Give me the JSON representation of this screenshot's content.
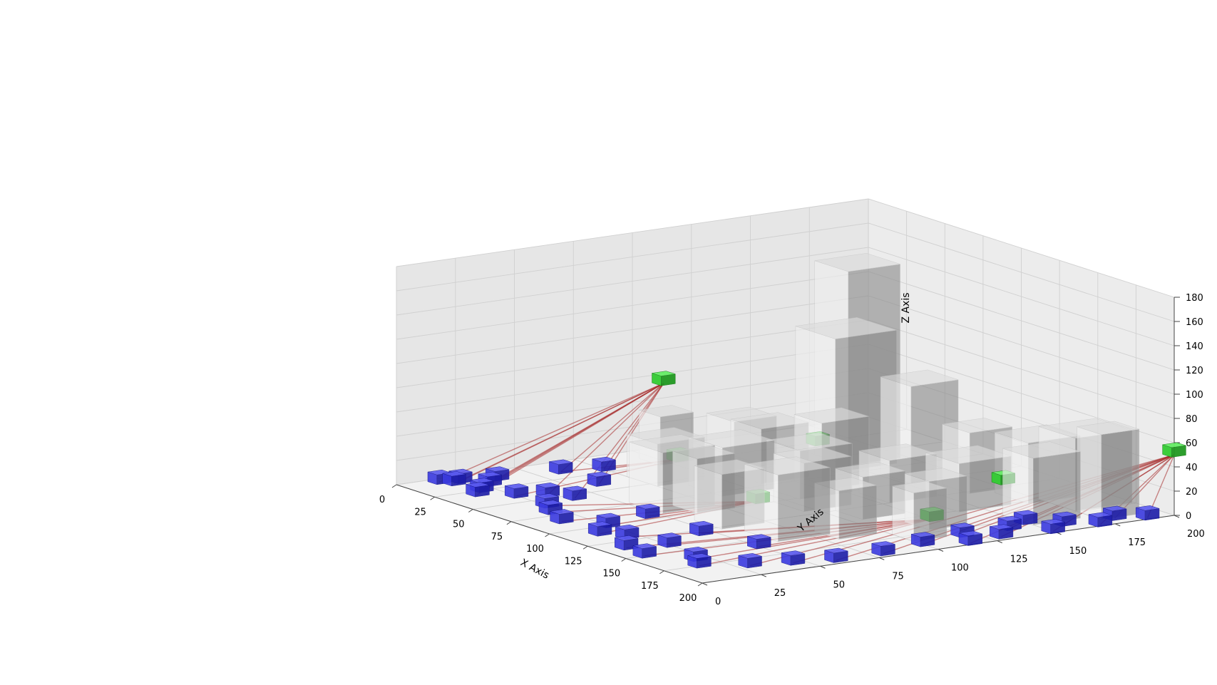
{
  "chart_data": {
    "type": "scatter",
    "projection": "3d",
    "grid": true,
    "xlabel": "X Axis",
    "ylabel": "Y Axis",
    "zlabel": "Z Axis",
    "xlim": [
      0,
      200
    ],
    "ylim": [
      0,
      200
    ],
    "zlim": [
      0,
      180
    ],
    "xticks": [
      0,
      25,
      50,
      75,
      100,
      125,
      150,
      175,
      200
    ],
    "yticks": [
      0,
      25,
      50,
      75,
      100,
      125,
      150,
      175,
      200
    ],
    "zticks": [
      0,
      20,
      40,
      60,
      80,
      100,
      120,
      140,
      160,
      180
    ],
    "colors": {
      "building": "#c8c8c8",
      "ground_node": "#2222cc",
      "relay_node": "#33cc33",
      "link": "#a52a2a",
      "pane": "#f2f2f2",
      "grid": "#d0d0d0"
    },
    "buildings": [
      {
        "x": 12,
        "y": 95,
        "w": 14,
        "d": 14,
        "h": 40
      },
      {
        "x": 30,
        "y": 112,
        "w": 18,
        "d": 18,
        "h": 40
      },
      {
        "x": 52,
        "y": 108,
        "w": 20,
        "d": 20,
        "h": 45
      },
      {
        "x": 75,
        "y": 120,
        "w": 18,
        "d": 20,
        "h": 55
      },
      {
        "x": 42,
        "y": 150,
        "w": 22,
        "d": 22,
        "h": 160
      },
      {
        "x": 45,
        "y": 140,
        "w": 26,
        "d": 26,
        "h": 110
      },
      {
        "x": 82,
        "y": 152,
        "w": 20,
        "d": 20,
        "h": 80
      },
      {
        "x": 110,
        "y": 160,
        "w": 18,
        "d": 18,
        "h": 50
      },
      {
        "x": 132,
        "y": 168,
        "w": 22,
        "d": 22,
        "h": 50
      },
      {
        "x": 150,
        "y": 175,
        "w": 24,
        "d": 24,
        "h": 60
      },
      {
        "x": 165,
        "y": 150,
        "w": 20,
        "d": 20,
        "h": 55
      },
      {
        "x": 130,
        "y": 140,
        "w": 22,
        "d": 22,
        "h": 40
      },
      {
        "x": 105,
        "y": 128,
        "w": 20,
        "d": 20,
        "h": 35
      },
      {
        "x": 80,
        "y": 105,
        "w": 22,
        "d": 22,
        "h": 40
      },
      {
        "x": 60,
        "y": 85,
        "w": 22,
        "d": 22,
        "h": 40
      },
      {
        "x": 100,
        "y": 95,
        "w": 20,
        "d": 20,
        "h": 40
      },
      {
        "x": 125,
        "y": 105,
        "w": 18,
        "d": 18,
        "h": 35
      },
      {
        "x": 155,
        "y": 115,
        "w": 16,
        "d": 16,
        "h": 40
      },
      {
        "x": 150,
        "y": 80,
        "w": 16,
        "d": 16,
        "h": 40
      },
      {
        "x": 135,
        "y": 60,
        "w": 22,
        "d": 22,
        "h": 55
      },
      {
        "x": 110,
        "y": 55,
        "w": 18,
        "d": 18,
        "h": 45
      },
      {
        "x": 72,
        "y": 52,
        "w": 22,
        "d": 22,
        "h": 50
      },
      {
        "x": 85,
        "y": 62,
        "w": 16,
        "d": 16,
        "h": 45
      },
      {
        "x": 170,
        "y": 100,
        "w": 14,
        "d": 14,
        "h": 40
      },
      {
        "x": 175,
        "y": 175,
        "w": 16,
        "d": 16,
        "h": 70
      },
      {
        "x": 35,
        "y": 75,
        "w": 20,
        "d": 20,
        "h": 35
      }
    ],
    "relay_nodes": [
      {
        "x": 5,
        "y": 110,
        "z": 55
      },
      {
        "x": 200,
        "y": 200,
        "z": 50
      },
      {
        "x": 75,
        "y": 130,
        "z": 28
      },
      {
        "x": 110,
        "y": 82,
        "z": 8
      },
      {
        "x": 150,
        "y": 160,
        "z": 18
      },
      {
        "x": 30,
        "y": 100,
        "z": 5
      },
      {
        "x": 165,
        "y": 120,
        "z": 5
      }
    ],
    "ground_nodes": [
      {
        "x": 5,
        "y": 15
      },
      {
        "x": 8,
        "y": 22
      },
      {
        "x": 10,
        "y": 18
      },
      {
        "x": 18,
        "y": 28
      },
      {
        "x": 12,
        "y": 35
      },
      {
        "x": 25,
        "y": 20
      },
      {
        "x": 30,
        "y": 15
      },
      {
        "x": 40,
        "y": 25
      },
      {
        "x": 45,
        "y": 35
      },
      {
        "x": 55,
        "y": 40
      },
      {
        "x": 60,
        "y": 25
      },
      {
        "x": 70,
        "y": 20
      },
      {
        "x": 85,
        "y": 15
      },
      {
        "x": 100,
        "y": 25
      },
      {
        "x": 110,
        "y": 15
      },
      {
        "x": 120,
        "y": 20
      },
      {
        "x": 135,
        "y": 10
      },
      {
        "x": 140,
        "y": 25
      },
      {
        "x": 150,
        "y": 8
      },
      {
        "x": 165,
        "y": 20
      },
      {
        "x": 175,
        "y": 15
      },
      {
        "x": 185,
        "y": 30
      },
      {
        "x": 190,
        "y": 45
      },
      {
        "x": 195,
        "y": 60
      },
      {
        "x": 195,
        "y": 80
      },
      {
        "x": 190,
        "y": 100
      },
      {
        "x": 198,
        "y": 115
      },
      {
        "x": 195,
        "y": 130
      },
      {
        "x": 185,
        "y": 140
      },
      {
        "x": 198,
        "y": 150
      },
      {
        "x": 190,
        "y": 160
      },
      {
        "x": 198,
        "y": 170
      },
      {
        "x": 192,
        "y": 180
      },
      {
        "x": 198,
        "y": 190
      },
      {
        "x": 180,
        "y": 150
      },
      {
        "x": 185,
        "y": 120
      },
      {
        "x": 15,
        "y": 60
      },
      {
        "x": 20,
        "y": 75
      },
      {
        "x": 40,
        "y": 60
      },
      {
        "x": 95,
        "y": 45
      },
      {
        "x": 130,
        "y": 45
      },
      {
        "x": 160,
        "y": 50
      }
    ],
    "links": [
      {
        "from": 0,
        "to": [
          0,
          1,
          2,
          3,
          4,
          5,
          6,
          8,
          9,
          36,
          37,
          38
        ]
      },
      {
        "from": 1,
        "to": [
          22,
          23,
          24,
          25,
          26,
          27,
          28,
          29,
          30,
          31,
          32,
          33,
          35
        ]
      },
      {
        "from": 3,
        "to": [
          10,
          11,
          12,
          13,
          14,
          39
        ]
      },
      {
        "from": 6,
        "to": [
          15,
          16,
          17,
          18,
          19,
          20,
          21,
          40,
          41
        ]
      },
      {
        "from": 5,
        "to": [
          7,
          36,
          37
        ]
      }
    ]
  }
}
